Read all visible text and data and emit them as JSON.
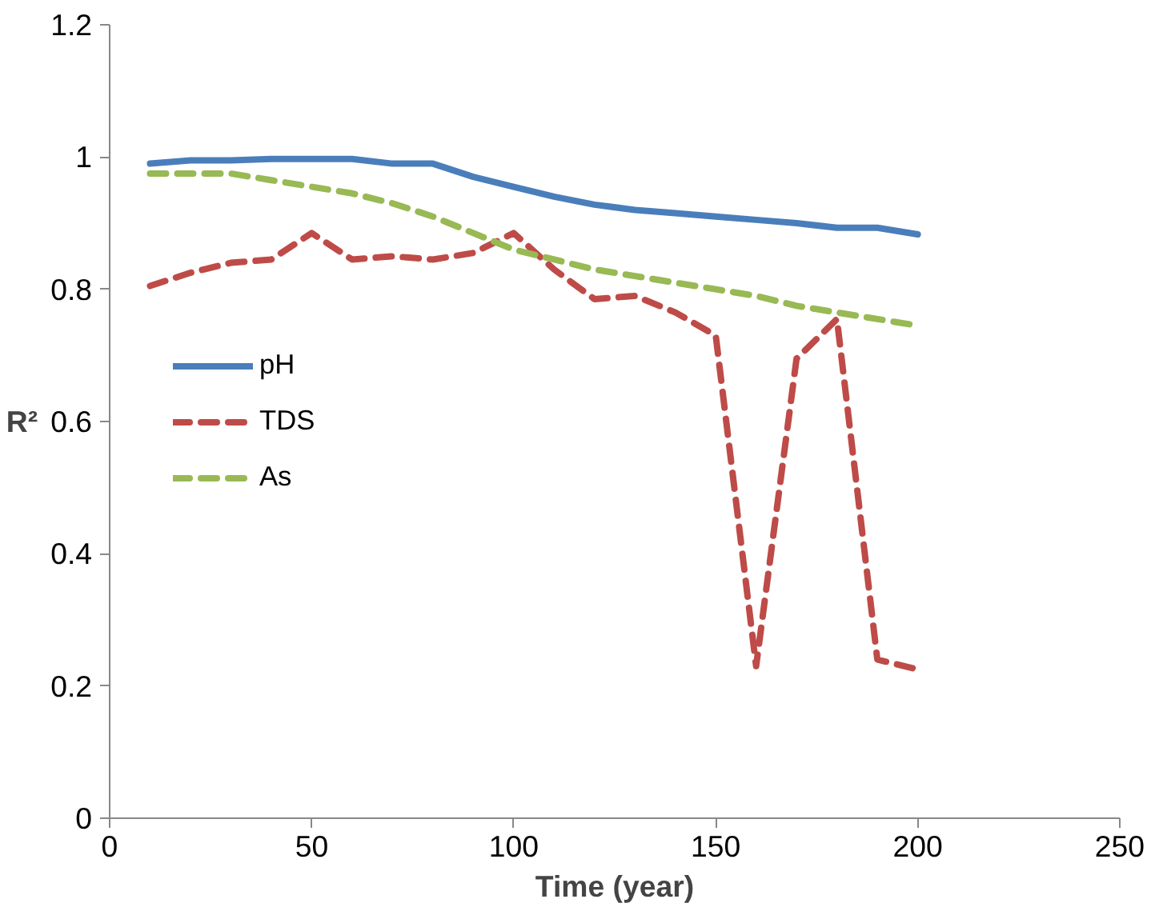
{
  "chart_data": {
    "type": "line",
    "xlabel": "Time (year)",
    "ylabel": "R²",
    "x": [
      10,
      20,
      30,
      40,
      50,
      60,
      70,
      80,
      90,
      100,
      110,
      120,
      130,
      140,
      150,
      160,
      170,
      180,
      190,
      200
    ],
    "series": [
      {
        "name": "pH",
        "color": "#4a7ebb",
        "line_style": "solid",
        "values": [
          0.99,
          0.995,
          0.995,
          0.997,
          0.997,
          0.997,
          0.99,
          0.99,
          0.97,
          0.955,
          0.94,
          0.928,
          0.92,
          0.915,
          0.91,
          0.905,
          0.9,
          0.893,
          0.893,
          0.883
        ]
      },
      {
        "name": "TDS",
        "color": "#be4b48",
        "line_style": "dashed",
        "values": [
          0.805,
          0.825,
          0.84,
          0.845,
          0.885,
          0.845,
          0.85,
          0.845,
          0.855,
          0.885,
          0.83,
          0.785,
          0.79,
          0.765,
          0.73,
          0.23,
          0.695,
          0.755,
          0.24,
          0.225
        ]
      },
      {
        "name": "As",
        "color": "#98b954",
        "line_style": "dashed",
        "values": [
          0.975,
          0.975,
          0.975,
          0.965,
          0.955,
          0.945,
          0.93,
          0.91,
          0.885,
          0.86,
          0.845,
          0.83,
          0.82,
          0.81,
          0.8,
          0.79,
          0.775,
          0.765,
          0.755,
          0.745
        ]
      }
    ],
    "xlim": [
      0,
      250
    ],
    "xticks": [
      0,
      50,
      100,
      150,
      200,
      250
    ],
    "ylim": [
      0,
      1.2
    ],
    "yticks": [
      {
        "value": 0,
        "label": "0"
      },
      {
        "value": 0.2,
        "label": "0.2"
      },
      {
        "value": 0.4,
        "label": "0.4"
      },
      {
        "value": 0.6,
        "label": "0.6"
      },
      {
        "value": 0.8,
        "label": "0.8"
      },
      {
        "value": 1,
        "label": "1"
      },
      {
        "value": 1.2,
        "label": "1.2"
      }
    ],
    "grid": false,
    "legend": "left"
  }
}
